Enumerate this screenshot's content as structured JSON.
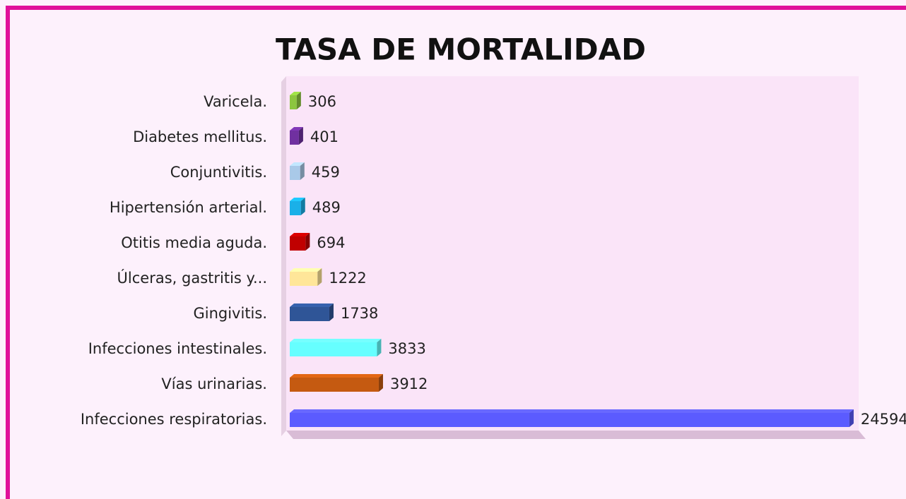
{
  "chart_data": {
    "type": "barh",
    "title": "TASA DE MORTALIDAD",
    "categories": [
      "Varicela.",
      "Diabetes mellitus.",
      "Conjuntivitis.",
      "Hipertensión arterial.",
      "Otitis media aguda.",
      "Úlceras, gastritis y...",
      "Gingivitis.",
      "Infecciones intestinales.",
      "Vías urinarias.",
      "Infecciones respiratorias."
    ],
    "values": [
      306,
      401,
      459,
      489,
      694,
      1222,
      1738,
      3833,
      3912,
      24594
    ],
    "colors": [
      "#8cc63f",
      "#7030a0",
      "#a9c9e8",
      "#1ab0e8",
      "#c00000",
      "#ffe699",
      "#2f5597",
      "#66ffff",
      "#c55a11",
      "#5b5bff"
    ],
    "xlim": [
      0,
      25000
    ]
  }
}
